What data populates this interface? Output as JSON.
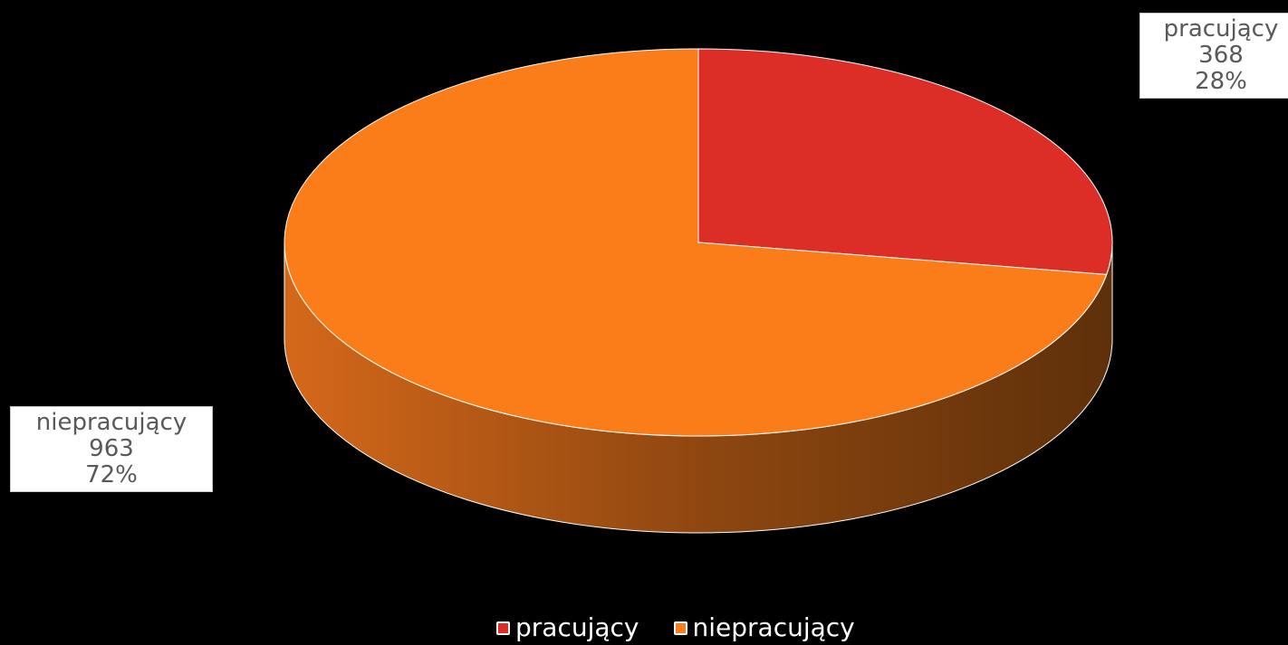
{
  "chart_data": {
    "type": "pie",
    "three_d": true,
    "title": "",
    "legend_position": "bottom",
    "start_angle_deg": 0,
    "direction": "clockwise",
    "slices": [
      {
        "name": "pracujący",
        "value": 368,
        "percent": "28%",
        "color": "#dc2e27"
      },
      {
        "name": "niepracujący",
        "value": 963,
        "percent": "72%",
        "color": "#fb7d1a"
      }
    ]
  },
  "colors": {
    "background": "#000000",
    "side_light": "#d5681a",
    "side_dark": "#5e300a",
    "slice_edge": "#ffffff"
  }
}
